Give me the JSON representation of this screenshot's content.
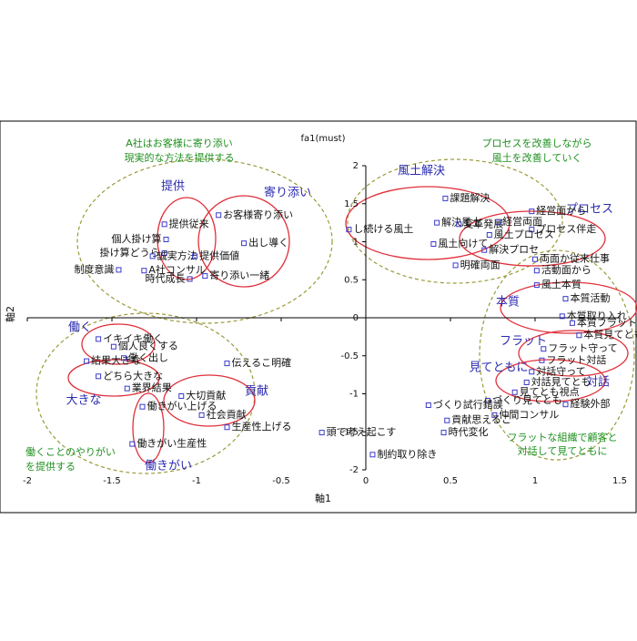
{
  "chart_data": {
    "type": "scatter",
    "title": "fa1(must)",
    "x_label": "軸1",
    "y_label": "軸2",
    "xlim": [
      -2,
      1.5
    ],
    "ylim": [
      -2,
      2
    ],
    "xticks": [
      -2,
      -1.5,
      -1,
      -0.5,
      0,
      0.5,
      1,
      1.5
    ],
    "yticks": [
      -2,
      -1.5,
      -1,
      -0.5,
      0,
      0.5,
      1,
      1.5,
      2
    ],
    "color": "#3a3acc",
    "labels": [
      "お客様寄り添い",
      "提供従来",
      "出し導く",
      "個人掛け算",
      "掛け算どうら",
      "誠実方法",
      "提供価値",
      "制度意識",
      "A社コンサル",
      "時代成長",
      "寄り添い一緒",
      "し続ける風土",
      "課題解決",
      "解決風土",
      "変革発展",
      "経営両面",
      "経営面から",
      "プロセス伴走",
      "風土プロセス",
      "解決プロセ",
      "風土向けて",
      "両面か従来仕事",
      "明確両面",
      "活動面から",
      "風土本質",
      "本質活動",
      "本質取り入れ",
      "本質フラット",
      "本質見てとも",
      "フラット守って",
      "フラット対話",
      "対話守って",
      "対話見てとも",
      "見てとも視点",
      "づくり見てとも",
      "仲間コンサル",
      "経験外部",
      "づくり試行錯誤",
      "貢献思えるこ",
      "時代変化",
      "頭で考え起こす",
      "制約取り除き",
      "伝えるこ明確",
      "大切貢献",
      "社会貢献",
      "生産性上げる",
      "働きがい上げる",
      "働きがい生産性",
      "イキイキ働く",
      "個人良くする",
      "結果大きな",
      "働く出し",
      "どちら大きな",
      "業界結果"
    ],
    "x": [
      -0.87,
      -1.19,
      -0.72,
      -1.18,
      -1.19,
      -1.26,
      -1.01,
      -1.46,
      -1.31,
      -1.04,
      -0.95,
      -0.1,
      0.47,
      0.42,
      0.55,
      0.78,
      0.98,
      0.98,
      0.73,
      0.7,
      0.4,
      1.0,
      0.53,
      1.01,
      1.01,
      1.18,
      1.16,
      1.22,
      1.26,
      1.05,
      1.04,
      0.98,
      0.95,
      0.88,
      0.72,
      0.76,
      1.18,
      0.37,
      0.48,
      0.46,
      -0.26,
      0.04,
      -0.82,
      -1.09,
      -0.97,
      -0.82,
      -1.32,
      -1.38,
      -1.58,
      -1.49,
      -1.65,
      -1.43,
      -1.58,
      -1.41
    ],
    "y": [
      1.35,
      1.23,
      0.98,
      1.03,
      0.85,
      0.81,
      0.81,
      0.63,
      0.62,
      0.51,
      0.55,
      1.16,
      1.57,
      1.25,
      1.23,
      1.26,
      1.4,
      1.16,
      1.09,
      0.89,
      0.97,
      0.77,
      0.69,
      0.62,
      0.43,
      0.25,
      0.02,
      -0.07,
      -0.23,
      -0.41,
      -0.56,
      -0.71,
      -0.85,
      -0.98,
      -1.09,
      -1.28,
      -1.14,
      -1.15,
      -1.35,
      -1.51,
      -1.51,
      -1.8,
      -0.6,
      -1.03,
      -1.28,
      -1.44,
      -1.17,
      -1.66,
      -0.28,
      -0.38,
      -0.57,
      -0.53,
      -0.77,
      -0.93
    ],
    "groups": [
      "提供",
      "寄り添い",
      "風土解決",
      "プロセス",
      "本質",
      "フラット",
      "見てともに",
      "対話",
      "働く",
      "大きな",
      "貢献",
      "働きがい"
    ],
    "notes": [
      "A社はお客様に寄り添い",
      "現実的な方法を提供する",
      "プロセスを改善しながら",
      "風土を改善していく",
      "働くことのやりがい",
      "を提供する",
      "フラットな組織で顧客と",
      "対話して見てともに"
    ]
  }
}
